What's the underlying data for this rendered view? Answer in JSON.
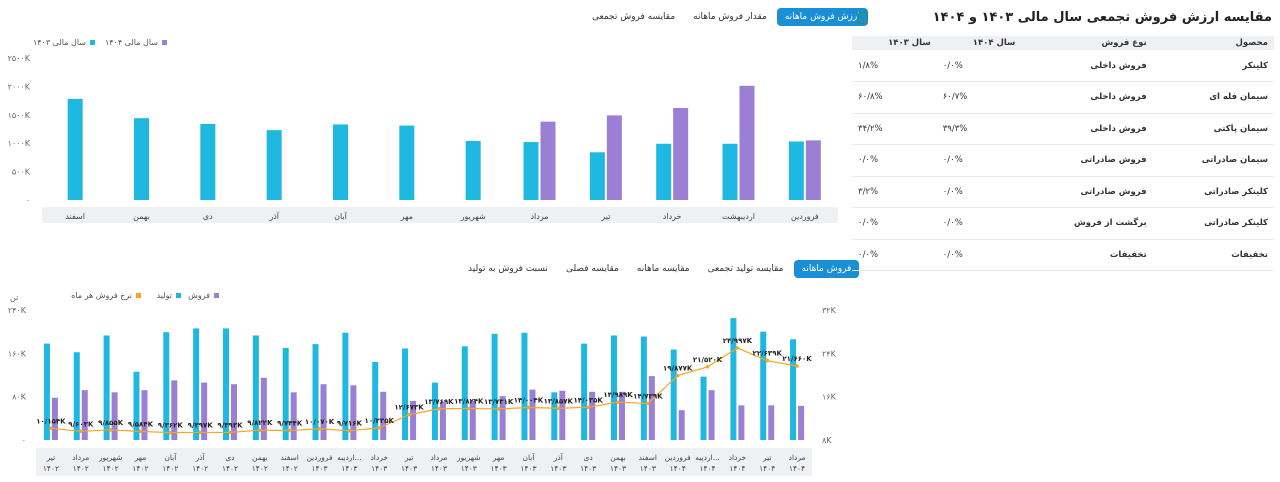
{
  "top_tabs": [
    {
      "label": "ارزش فروش ماهانه",
      "active": true
    },
    {
      "label": "مقدار فروش ماهانه",
      "active": false
    },
    {
      "label": "مقایسه فروش تجمعی",
      "active": false
    }
  ],
  "bottom_tabs": [
    {
      "label": "فروش ماهانه",
      "active": true
    },
    {
      "label": "مقایسه تولید تجمعی",
      "active": false
    },
    {
      "label": "مقایسه ماهانه",
      "active": false
    },
    {
      "label": "مقایسه فصلی",
      "active": false
    },
    {
      "label": "نسبت فروش به تولید",
      "active": false
    }
  ],
  "table_panel": {
    "title": "مقایسه ارزش فروش تجمعی سال مالی ۱۴۰۳ و ۱۴۰۴",
    "icon": "document-icon",
    "headers": [
      "محصول",
      "نوع فروش",
      "سال ۱۴۰۴",
      "سال ۱۴۰۳"
    ],
    "rows": [
      {
        "product": "کلینکر",
        "type": "فروش داخلی",
        "y1404": "۰/۰%",
        "y1403": "۱/۸%"
      },
      {
        "product": "سیمان فله ای",
        "type": "فروش داخلی",
        "y1404": "۶۰/۷%",
        "y1403": "۶۰/۸%"
      },
      {
        "product": "سیمان پاکتی",
        "type": "فروش داخلی",
        "y1404": "۳۹/۳%",
        "y1403": "۳۴/۲%"
      },
      {
        "product": "سیمان صادراتی",
        "type": "فروش صادراتی",
        "y1404": "۰/۰%",
        "y1403": "۰/۰%"
      },
      {
        "product": "کلینکر صادراتی",
        "type": "فروش صادراتی",
        "y1404": "۰/۰%",
        "y1403": "۳/۲%"
      },
      {
        "product": "کلینکر صادراتی",
        "type": "برگشت از فروش",
        "y1404": "۰/۰%",
        "y1403": "۰/۰%"
      },
      {
        "product": "تخفیفات",
        "type": "تخفیفات",
        "y1404": "۰/۰%",
        "y1403": "۰/۰%"
      }
    ]
  },
  "chart_data": [
    {
      "type": "bar",
      "legend_position": "top-left",
      "series": [
        {
          "name": "سال مالی ۱۴۰۴",
          "color": "#9b7fd4",
          "values": [
            1050,
            2010,
            1620,
            1490,
            1380,
            null,
            null,
            null,
            null,
            null,
            null,
            null
          ]
        },
        {
          "name": "سال مالی ۱۴۰۳",
          "color": "#1fb8e0",
          "values": [
            1030,
            990,
            990,
            840,
            1020,
            1040,
            1310,
            1330,
            1230,
            1340,
            1440,
            1780
          ]
        }
      ],
      "categories": [
        "فروردین",
        "اردیبهشت",
        "خرداد",
        "تیر",
        "مرداد",
        "شهریور",
        "مهر",
        "آبان",
        "آذر",
        "دی",
        "بهمن",
        "اسفند"
      ],
      "y_ticks": [
        "۰",
        "۵۰۰K",
        "۱۰۰۰K",
        "۱۵۰۰K",
        "۲۰۰۰K",
        "۲۵۰۰K"
      ],
      "ylim": [
        0,
        2500
      ],
      "grid": false
    },
    {
      "type": "bar",
      "legend_position": "top-left",
      "legend": [
        {
          "name": "فروش",
          "color": "#9b7fd4"
        },
        {
          "name": "تولید",
          "color": "#1fb8e0"
        },
        {
          "name": "نرخ فروش هر ماه",
          "color": "#f5a623"
        }
      ],
      "left_axis_unit": "تن",
      "left_ticks": [
        "۰",
        "۸۰K",
        "۱۶۰K",
        "۲۴۰K"
      ],
      "right_ticks": [
        "۸K",
        "۱۶K",
        "۲۴K",
        "۳۲K"
      ],
      "ylim_left": [
        0,
        240
      ],
      "ylim_right": [
        8,
        32
      ],
      "categories": [
        [
          "تیر",
          "۱۴۰۲"
        ],
        [
          "مرداد",
          "۱۴۰۲"
        ],
        [
          "شهریور",
          "۱۴۰۲"
        ],
        [
          "مهر",
          "۱۴۰۲"
        ],
        [
          "آبان",
          "۱۴۰۲"
        ],
        [
          "آذر",
          "۱۴۰۲"
        ],
        [
          "دی",
          "۱۴۰۲"
        ],
        [
          "بهمن",
          "۱۴۰۲"
        ],
        [
          "اسفند",
          "۱۴۰۲"
        ],
        [
          "فروردین",
          "۱۴۰۳"
        ],
        [
          "اردیبه...",
          "۱۴۰۳"
        ],
        [
          "خرداد",
          "۱۴۰۳"
        ],
        [
          "تیر",
          "۱۴۰۳"
        ],
        [
          "مرداد",
          "۱۴۰۳"
        ],
        [
          "شهریور",
          "۱۴۰۳"
        ],
        [
          "مهر",
          "۱۴۰۳"
        ],
        [
          "آبان",
          "۱۴۰۳"
        ],
        [
          "آذر",
          "۱۴۰۳"
        ],
        [
          "دی",
          "۱۴۰۳"
        ],
        [
          "بهمن",
          "۱۴۰۳"
        ],
        [
          "اسفند",
          "۱۴۰۳"
        ],
        [
          "فروردین",
          "۱۴۰۴"
        ],
        [
          "اردیبه...",
          "۱۴۰۴"
        ],
        [
          "خرداد",
          "۱۴۰۴"
        ],
        [
          "تیر",
          "۱۴۰۴"
        ],
        [
          "مرداد",
          "۱۴۰۴"
        ]
      ],
      "production": [
        178,
        162,
        193,
        126,
        199,
        206,
        206,
        193,
        170,
        177,
        198,
        144,
        169,
        106,
        173,
        196,
        198,
        88,
        178,
        193,
        191,
        167,
        117,
        225,
        200,
        186
      ],
      "sales": [
        78,
        92,
        88,
        92,
        110,
        106,
        103,
        115,
        88,
        103,
        101,
        89,
        72,
        70,
        72,
        81,
        93,
        91,
        89,
        89,
        118,
        55,
        92,
        64,
        64,
        63
      ],
      "rate": [
        10.154,
        9.603,
        9.855,
        9.584,
        9.362,
        9.397,
        9.393,
        9.822,
        9.744,
        10.07,
        9.716,
        10.235,
        12.673,
        13.769,
        13.824,
        13.731,
        14.004,
        13.857,
        14.035,
        14.989,
        14.739,
        19.877,
        21.52,
        24.997,
        22.639,
        21.66
      ],
      "rate_labels": [
        "۱۰/۱۵۴K",
        "۹/۶۰۳K",
        "۹/۸۵۵K",
        "۹/۵۸۴K",
        "۹/۳۶۲K",
        "۹/۳۹۷K",
        "۹/۳۹۳K",
        "۹/۸۲۲K",
        "۹/۷۴۴K",
        "۱۰/۰۷۰K",
        "۹/۷۱۶K",
        "۱۰/۲۳۵K",
        "۱۲/۶۷۳K",
        "۱۳/۷۶۹K",
        "۱۳/۸۲۴K",
        "۱۳/۷۳۱K",
        "۱۴/۰۰۴K",
        "۱۳/۸۵۷K",
        "۱۴/۰۳۵K",
        "۱۴/۹۸۹K",
        "۱۴/۷۳۹K",
        "۱۹/۸۷۷K",
        "۲۱/۵۲۰K",
        "۲۴/۹۹۷K",
        "۲۲/۶۳۹K",
        "۲۱/۶۶۰K"
      ],
      "grid": false
    }
  ]
}
